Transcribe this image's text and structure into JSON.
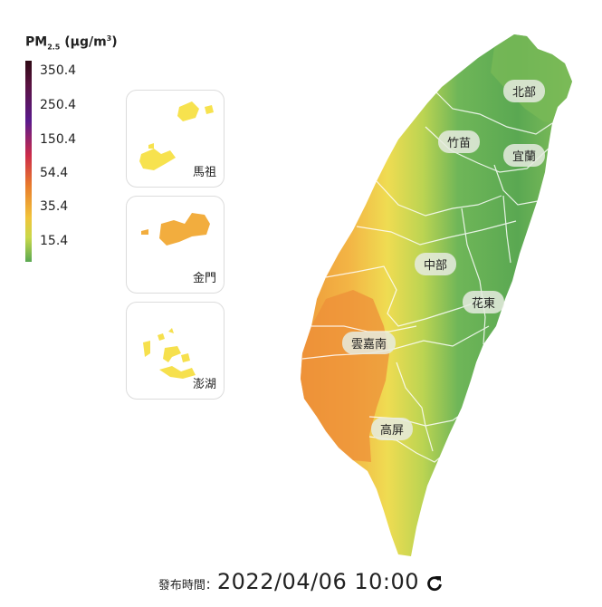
{
  "legend": {
    "title_main": "PM",
    "title_sub": "2.5",
    "title_unit": " (μg/m",
    "title_sup": "3",
    "title_end": ")",
    "levels": [
      "350.4",
      "250.4",
      "150.4",
      "54.4",
      "35.4",
      "15.4"
    ],
    "colors": [
      "#2e0a14",
      "#5a1a8c",
      "#cc2b4a",
      "#e87b2c",
      "#f1c43a",
      "#5aa852"
    ]
  },
  "insets": [
    {
      "label": "馬祖",
      "color": "#f7e24e"
    },
    {
      "label": "金門",
      "color": "#f2ad3e"
    },
    {
      "label": "澎湖",
      "color": "#f6e04d"
    }
  ],
  "regions": [
    "北部",
    "竹苗",
    "宜蘭",
    "中部",
    "花東",
    "雲嘉南",
    "高屏"
  ],
  "footer": {
    "publish_label": "發布時間：",
    "publish_time": "2022/04/06 10:00"
  },
  "icons": {
    "refresh": "refresh-icon"
  }
}
